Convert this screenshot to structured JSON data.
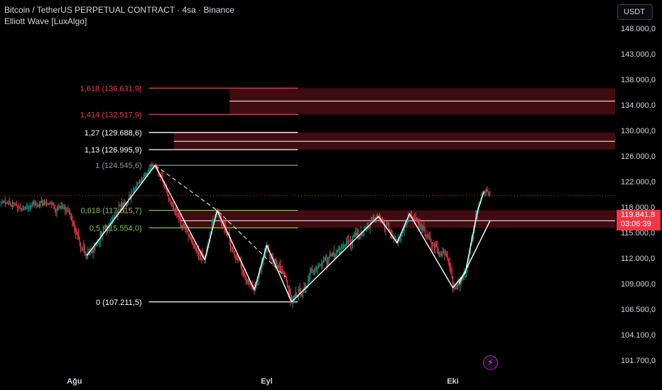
{
  "header": {
    "title": "Bitcoin / TetherUS PERPETUAL CONTRACT · 4sa · Binance",
    "indicator": "Elliott Wave [LuxAlgo]"
  },
  "toolbar": {
    "currency_label": "USDT",
    "flash_icon": "lightning-icon"
  },
  "last_price": {
    "value": "119.841,8",
    "countdown": "03:06:39"
  },
  "colors": {
    "background": "#000000",
    "bull": "#089981",
    "bear": "#f23645",
    "wave": "#ffffff",
    "zone": "#5a0f19",
    "fib_red": "#f23645",
    "fib_green": "#7ec94a",
    "fib_gray": "#9598a1"
  },
  "chart_data": {
    "type": "candlestick",
    "y_axis": {
      "ticks": [
        101700,
        104100,
        106500,
        109000,
        112000,
        115000,
        118000,
        122000,
        126000,
        130000,
        134000,
        138000,
        143000,
        148000
      ],
      "tick_labels": [
        "101.700,0",
        "104.100,0",
        "106.500,0",
        "109.000,0",
        "112.000,0",
        "115.000,0",
        "118.000,0",
        "122.000,0",
        "126.000,0",
        "130.000,0",
        "134.000,0",
        "138.000,0",
        "143.000,0",
        "148.000,0"
      ]
    },
    "x_axis": {
      "dates": [
        "2025-07-20",
        "2025-10-07"
      ],
      "ticks": [
        {
          "date": "2025-08-01",
          "label": "Ağu"
        },
        {
          "date": "2025-09-01",
          "label": "Eyl"
        },
        {
          "date": "2025-10-01",
          "label": "Eki"
        }
      ]
    },
    "last_price": 119841.8,
    "price_anchors": [
      [
        "2025-07-20",
        118700
      ],
      [
        "2025-07-24",
        117900
      ],
      [
        "2025-07-28",
        118600
      ],
      [
        "2025-07-31",
        117600
      ],
      [
        "2025-08-02",
        113200
      ],
      [
        "2025-08-03",
        112300
      ],
      [
        "2025-08-07",
        116200
      ],
      [
        "2025-08-11",
        121500
      ],
      [
        "2025-08-14",
        124545.6
      ],
      [
        "2025-08-17",
        117800
      ],
      [
        "2025-08-20",
        113700
      ],
      [
        "2025-08-22",
        111800
      ],
      [
        "2025-08-24",
        117600
      ],
      [
        "2025-08-27",
        112000
      ],
      [
        "2025-08-30",
        108400
      ],
      [
        "2025-09-01",
        113500
      ],
      [
        "2025-09-04",
        109800
      ],
      [
        "2025-09-05",
        107211.5
      ],
      [
        "2025-09-09",
        110800
      ],
      [
        "2025-09-13",
        113200
      ],
      [
        "2025-09-17",
        115500
      ],
      [
        "2025-09-19",
        116900
      ],
      [
        "2025-09-22",
        113800
      ],
      [
        "2025-09-24",
        117200
      ],
      [
        "2025-09-27",
        114500
      ],
      [
        "2025-09-30",
        112200
      ],
      [
        "2025-10-01",
        108600
      ],
      [
        "2025-10-03",
        110300
      ],
      [
        "2025-10-05",
        117600
      ],
      [
        "2025-10-06",
        120400
      ],
      [
        "2025-10-07",
        119841.8
      ]
    ],
    "fib_levels": [
      {
        "label": "1,618 (136.631,9)",
        "value": 136631.9,
        "color": "#f23645"
      },
      {
        "label": "1,414 (132.517,9)",
        "value": 132517.9,
        "color": "#f23645"
      },
      {
        "label": "1,27 (129.688,6)",
        "value": 129688.6,
        "color": "#ffffff"
      },
      {
        "label": "1,13 (126.995,9)",
        "value": 126995.9,
        "color": "#ffffff"
      },
      {
        "label": "1 (124.545,6)",
        "value": 124545.6,
        "color": "#9598a1"
      },
      {
        "label": "0,618 (117.615,7)",
        "value": 117615.7,
        "color": "#7ec94a"
      },
      {
        "label": "0,5 (115.554,0)",
        "value": 115554.0,
        "color": "#7ec94a"
      },
      {
        "label": "0 (107.211,5)",
        "value": 107211.5,
        "color": "#ffffff"
      }
    ],
    "fib_start_date": "2025-08-13",
    "fib_end_date": "2025-09-06",
    "zones": [
      {
        "start": "2025-08-26",
        "end": "2025-10-07",
        "top": 136631.9,
        "bottom": 132517.9,
        "mid": 134600
      },
      {
        "start": "2025-08-17",
        "end": "2025-10-07",
        "top": 129688.6,
        "bottom": 126995.9,
        "mid": 128300
      },
      {
        "start": "2025-08-18",
        "end": "2025-10-07",
        "top": 117615.7,
        "bottom": 115554.0,
        "mid": 116400
      }
    ],
    "waves": [
      {
        "points": [
          [
            "2025-08-03",
            112300
          ],
          [
            "2025-08-14",
            124545.6
          ],
          [
            "2025-08-22",
            111800
          ],
          [
            "2025-08-24",
            117600
          ],
          [
            "2025-08-30",
            108400
          ],
          [
            "2025-09-01",
            113500
          ],
          [
            "2025-09-05",
            107211.5
          ]
        ]
      },
      {
        "points": [
          [
            "2025-09-05",
            107211.5
          ],
          [
            "2025-09-19",
            116900
          ],
          [
            "2025-09-22",
            113800
          ],
          [
            "2025-09-24",
            117200
          ],
          [
            "2025-10-01",
            108600
          ],
          [
            "2025-10-03",
            110300
          ],
          [
            "2025-10-05",
            117600
          ],
          [
            "2025-10-06",
            120400
          ]
        ]
      }
    ],
    "dashed_wave": [
      [
        "2025-08-14",
        124545.6
      ],
      [
        "2025-08-24",
        117600
      ],
      [
        "2025-09-04",
        109800
      ]
    ],
    "channel_line": [
      [
        "2025-10-02",
        109000
      ],
      [
        "2025-10-07",
        116400
      ]
    ]
  }
}
